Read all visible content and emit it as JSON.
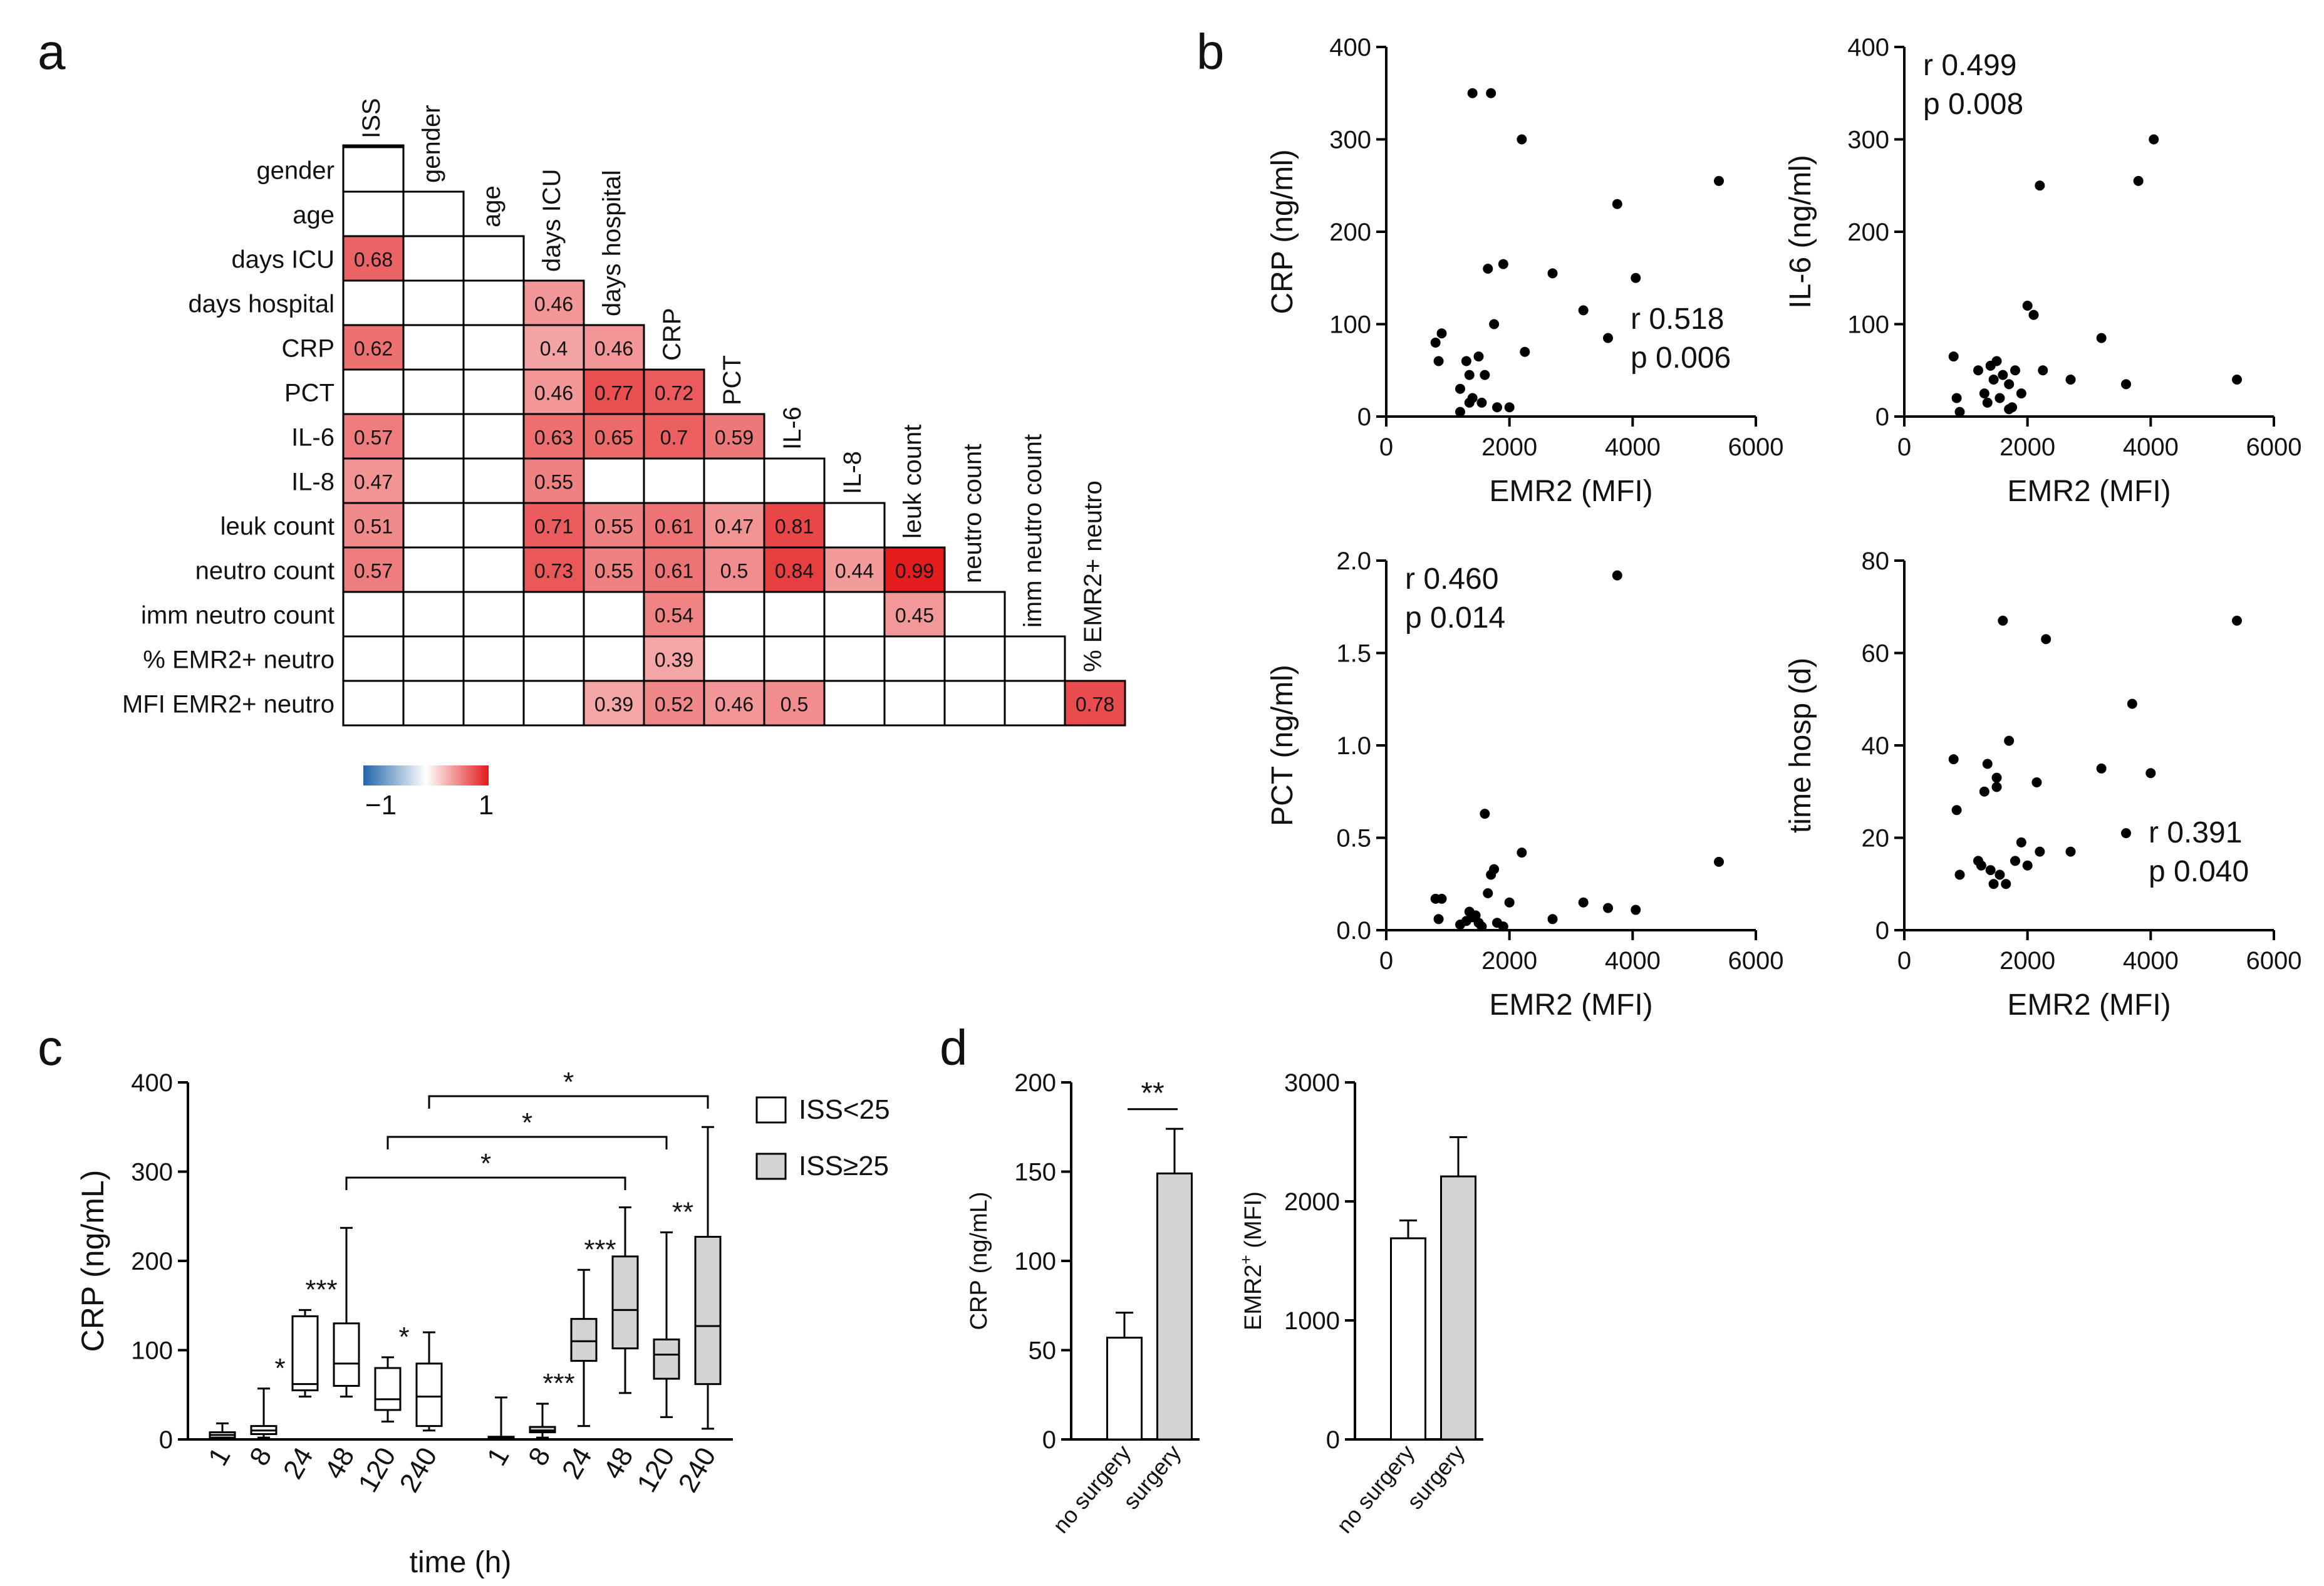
{
  "panels": {
    "a": "a",
    "b": "b",
    "c": "c",
    "d": "d"
  },
  "chart_data": [
    {
      "id": "a",
      "type": "heatmap",
      "title": "",
      "row_labels": [
        "gender",
        "age",
        "days ICU",
        "days hospital",
        "CRP",
        "PCT",
        "IL-6",
        "IL-8",
        "leuk count",
        "neutro count",
        "imm neutro count",
        "% EMR2+ neutro",
        "MFI EMR2+ neutro"
      ],
      "col_labels": [
        "ISS",
        "gender",
        "age",
        "days ICU",
        "days hospital",
        "CRP",
        "PCT",
        "IL-6",
        "IL-8",
        "leuk count",
        "neutro count",
        "imm neutro count",
        "% EMR2+ neutro"
      ],
      "cells": [
        {
          "row": 2,
          "col": 0,
          "value": 0.68
        },
        {
          "row": 3,
          "col": 3,
          "value": 0.46
        },
        {
          "row": 4,
          "col": 0,
          "value": 0.62
        },
        {
          "row": 4,
          "col": 3,
          "value": 0.4
        },
        {
          "row": 4,
          "col": 4,
          "value": 0.46
        },
        {
          "row": 5,
          "col": 3,
          "value": 0.46
        },
        {
          "row": 5,
          "col": 4,
          "value": 0.77
        },
        {
          "row": 5,
          "col": 5,
          "value": 0.72
        },
        {
          "row": 6,
          "col": 0,
          "value": 0.57
        },
        {
          "row": 6,
          "col": 3,
          "value": 0.63
        },
        {
          "row": 6,
          "col": 4,
          "value": 0.65
        },
        {
          "row": 6,
          "col": 5,
          "value": 0.7
        },
        {
          "row": 6,
          "col": 6,
          "value": 0.59
        },
        {
          "row": 7,
          "col": 0,
          "value": 0.47
        },
        {
          "row": 7,
          "col": 3,
          "value": 0.55
        },
        {
          "row": 8,
          "col": 0,
          "value": 0.51
        },
        {
          "row": 8,
          "col": 3,
          "value": 0.71
        },
        {
          "row": 8,
          "col": 4,
          "value": 0.55
        },
        {
          "row": 8,
          "col": 5,
          "value": 0.61
        },
        {
          "row": 8,
          "col": 6,
          "value": 0.47
        },
        {
          "row": 8,
          "col": 7,
          "value": 0.81
        },
        {
          "row": 9,
          "col": 0,
          "value": 0.57
        },
        {
          "row": 9,
          "col": 3,
          "value": 0.73
        },
        {
          "row": 9,
          "col": 4,
          "value": 0.55
        },
        {
          "row": 9,
          "col": 5,
          "value": 0.61
        },
        {
          "row": 9,
          "col": 6,
          "value": 0.5
        },
        {
          "row": 9,
          "col": 7,
          "value": 0.84
        },
        {
          "row": 9,
          "col": 8,
          "value": 0.44
        },
        {
          "row": 9,
          "col": 9,
          "value": 0.99
        },
        {
          "row": 10,
          "col": 5,
          "value": 0.54
        },
        {
          "row": 10,
          "col": 9,
          "value": 0.45
        },
        {
          "row": 11,
          "col": 5,
          "value": 0.39
        },
        {
          "row": 12,
          "col": 4,
          "value": 0.39
        },
        {
          "row": 12,
          "col": 5,
          "value": 0.52
        },
        {
          "row": 12,
          "col": 6,
          "value": 0.46
        },
        {
          "row": 12,
          "col": 7,
          "value": 0.5
        },
        {
          "row": 12,
          "col": 12,
          "value": 0.78
        }
      ],
      "colorbar": {
        "min": -1,
        "max": 1,
        "min_label": "−1",
        "max_label": "1",
        "low_color": "#2166ac",
        "mid_color": "#ffffff",
        "high_color": "#e31a1c"
      }
    },
    {
      "id": "b1",
      "type": "scatter",
      "xlabel": "EMR2 (MFI)",
      "ylabel": "CRP  (ng/ml)",
      "xlim": [
        0,
        6000
      ],
      "ylim": [
        0,
        400
      ],
      "xticks": [
        "0",
        "2000",
        "4000",
        "6000"
      ],
      "yticks": [
        "0",
        "100",
        "200",
        "300",
        "400"
      ],
      "stat_r": "r  0.518",
      "stat_p": "p  0.006",
      "stat_position": "bottom-right",
      "x": [
        800,
        850,
        900,
        1200,
        1300,
        1350,
        1400,
        1500,
        1550,
        1600,
        1650,
        1700,
        1750,
        1800,
        1900,
        2000,
        2200,
        2250,
        2700,
        3200,
        3600,
        3750,
        4050,
        5400,
        1350,
        1400,
        1200
      ],
      "y": [
        80,
        60,
        90,
        30,
        60,
        45,
        350,
        65,
        15,
        45,
        160,
        350,
        100,
        10,
        165,
        10,
        300,
        70,
        155,
        115,
        85,
        230,
        150,
        255,
        15,
        20,
        5
      ]
    },
    {
      "id": "b2",
      "type": "scatter",
      "xlabel": "EMR2 (MFI)",
      "ylabel": "IL-6 (ng/ml)",
      "xlim": [
        0,
        6000
      ],
      "ylim": [
        0,
        400
      ],
      "xticks": [
        "0",
        "2000",
        "4000",
        "6000"
      ],
      "yticks": [
        "0",
        "100",
        "200",
        "300",
        "400"
      ],
      "stat_r": "r  0.499",
      "stat_p": "p  0.008",
      "stat_position": "top-left",
      "x": [
        800,
        850,
        1200,
        1300,
        1350,
        1400,
        1450,
        1500,
        1550,
        1600,
        1700,
        1750,
        1800,
        1900,
        2000,
        2100,
        2200,
        2250,
        2700,
        3200,
        3600,
        3800,
        4050,
        5400,
        900,
        1700
      ],
      "y": [
        65,
        20,
        50,
        25,
        15,
        55,
        40,
        60,
        20,
        45,
        35,
        10,
        50,
        25,
        120,
        110,
        250,
        50,
        40,
        85,
        35,
        255,
        300,
        40,
        5,
        8
      ]
    },
    {
      "id": "b3",
      "type": "scatter",
      "xlabel": "EMR2 (MFI)",
      "ylabel": "PCT  (ng/ml)",
      "xlim": [
        0,
        6000
      ],
      "ylim": [
        0,
        2.0
      ],
      "xticks": [
        "0",
        "2000",
        "4000",
        "6000"
      ],
      "yticks": [
        "0.0",
        "0.5",
        "1.0",
        "1.5",
        "2.0"
      ],
      "stat_r": "r  0.460",
      "stat_p": "p  0.014",
      "stat_position": "top-left",
      "x": [
        800,
        850,
        900,
        1200,
        1300,
        1350,
        1400,
        1500,
        1600,
        1650,
        1700,
        1750,
        1800,
        1900,
        2000,
        2200,
        2700,
        3200,
        3600,
        3750,
        4050,
        5400,
        1450,
        1550
      ],
      "y": [
        0.17,
        0.06,
        0.17,
        0.03,
        0.05,
        0.1,
        0.07,
        0.04,
        0.63,
        0.2,
        0.3,
        0.33,
        0.04,
        0.02,
        0.15,
        0.42,
        0.06,
        0.15,
        0.12,
        1.92,
        0.11,
        0.37,
        0.08,
        0.02
      ]
    },
    {
      "id": "b4",
      "type": "scatter",
      "xlabel": "EMR2 (MFI)",
      "ylabel": "time hosp (d)",
      "xlim": [
        0,
        6000
      ],
      "ylim": [
        0,
        80
      ],
      "xticks": [
        "0",
        "2000",
        "4000",
        "6000"
      ],
      "yticks": [
        "0",
        "20",
        "40",
        "60",
        "80"
      ],
      "stat_r": "r  0.391",
      "stat_p": "p  0.040",
      "stat_position": "bottom-right",
      "x": [
        800,
        850,
        900,
        1200,
        1250,
        1300,
        1350,
        1400,
        1450,
        1500,
        1550,
        1600,
        1650,
        1700,
        1800,
        1900,
        2000,
        2150,
        2200,
        2300,
        2700,
        3200,
        3600,
        3700,
        4000,
        5400,
        1500
      ],
      "y": [
        37,
        26,
        12,
        15,
        14,
        30,
        36,
        13,
        10,
        33,
        12,
        67,
        10,
        41,
        15,
        19,
        14,
        32,
        17,
        63,
        17,
        35,
        21,
        49,
        34,
        67,
        31
      ]
    },
    {
      "id": "c",
      "type": "box",
      "ylabel": "CRP (ng/mL)",
      "xlabel": "time (h)",
      "ylim": [
        0,
        400
      ],
      "yticks": [
        "0",
        "100",
        "200",
        "300",
        "400"
      ],
      "legend": [
        {
          "label": "ISS<25",
          "color": "#ffffff"
        },
        {
          "label": "ISS≥25",
          "color": "#d3d3d3"
        }
      ],
      "groups": [
        {
          "time": "1",
          "series": "ISS<25",
          "min": 0,
          "q1": 2,
          "median": 5,
          "q3": 8,
          "max": 18,
          "sig": ""
        },
        {
          "time": "8",
          "series": "ISS<25",
          "min": 2,
          "q1": 6,
          "median": 10,
          "q3": 15,
          "max": 57,
          "sig": "*"
        },
        {
          "time": "24",
          "series": "ISS<25",
          "min": 48,
          "q1": 55,
          "median": 62,
          "q3": 138,
          "max": 145,
          "sig": "***"
        },
        {
          "time": "48",
          "series": "ISS<25",
          "min": 48,
          "q1": 60,
          "median": 85,
          "q3": 130,
          "max": 237,
          "sig": ""
        },
        {
          "time": "120",
          "series": "ISS<25",
          "min": 20,
          "q1": 33,
          "median": 45,
          "q3": 80,
          "max": 92,
          "sig": "*"
        },
        {
          "time": "240",
          "series": "ISS<25",
          "min": 10,
          "q1": 15,
          "median": 48,
          "q3": 85,
          "max": 120,
          "sig": ""
        },
        {
          "time": "1",
          "series": "ISS≥25",
          "min": 0,
          "q1": 1,
          "median": 2,
          "q3": 3,
          "max": 47,
          "sig": ""
        },
        {
          "time": "8",
          "series": "ISS≥25",
          "min": 2,
          "q1": 8,
          "median": 10,
          "q3": 14,
          "max": 40,
          "sig": "***"
        },
        {
          "time": "24",
          "series": "ISS≥25",
          "min": 15,
          "q1": 88,
          "median": 110,
          "q3": 135,
          "max": 190,
          "sig": "***"
        },
        {
          "time": "48",
          "series": "ISS≥25",
          "min": 52,
          "q1": 102,
          "median": 145,
          "q3": 205,
          "max": 260,
          "sig": ""
        },
        {
          "time": "120",
          "series": "ISS≥25",
          "min": 25,
          "q1": 68,
          "median": 95,
          "q3": 112,
          "max": 232,
          "sig": "**"
        },
        {
          "time": "240",
          "series": "ISS≥25",
          "min": 12,
          "q1": 62,
          "median": 127,
          "q3": 227,
          "max": 350,
          "sig": ""
        }
      ],
      "brackets": [
        {
          "from": "ISS<25 48h",
          "to": "ISS≥25 48h",
          "label": "*"
        },
        {
          "from": "ISS<25 120h",
          "to": "ISS≥25 120h",
          "label": "*"
        },
        {
          "from": "ISS<25 240h",
          "to": "ISS≥25 240h",
          "label": "*"
        }
      ]
    },
    {
      "id": "d1",
      "type": "bar",
      "ylabel": "CRP (ng/mL)",
      "ylim": [
        0,
        200
      ],
      "yticks": [
        "0",
        "50",
        "100",
        "150",
        "200"
      ],
      "categories": [
        "no surgery",
        "surgery"
      ],
      "values": [
        57,
        149
      ],
      "errors": [
        14,
        25
      ],
      "colors": [
        "#ffffff",
        "#d3d3d3"
      ],
      "sig": "**"
    },
    {
      "id": "d2",
      "type": "bar",
      "ylabel_main": "EMR2",
      "ylabel_sup": "+",
      "ylabel_tail": " (MFI)",
      "ylim": [
        0,
        3000
      ],
      "yticks": [
        "0",
        "1000",
        "2000",
        "3000"
      ],
      "categories": [
        "no surgery",
        "surgery"
      ],
      "values": [
        1690,
        2210
      ],
      "errors": [
        150,
        330
      ],
      "colors": [
        "#ffffff",
        "#d3d3d3"
      ]
    }
  ]
}
